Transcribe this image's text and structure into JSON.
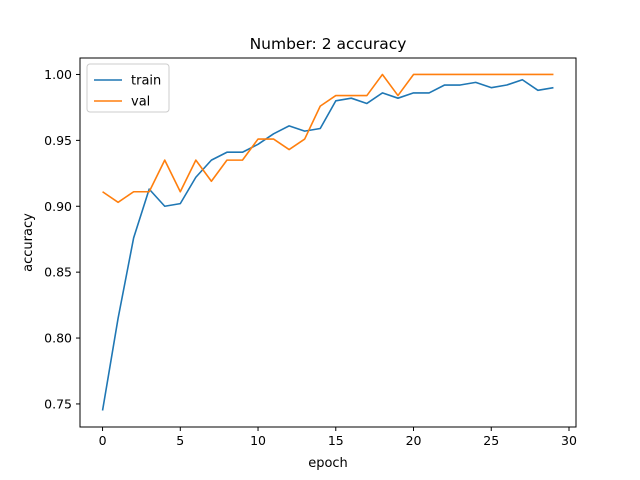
{
  "chart_data": {
    "type": "line",
    "title": "Number: 2 accuracy",
    "xlabel": "epoch",
    "ylabel": "accuracy",
    "xlim": [
      -1.45,
      30.45
    ],
    "ylim": [
      0.7325,
      1.0125
    ],
    "xticks": [
      0,
      5,
      10,
      15,
      20,
      25,
      30
    ],
    "yticks": [
      0.75,
      0.8,
      0.85,
      0.9,
      0.95,
      1.0
    ],
    "ytick_labels": [
      "0.75",
      "0.80",
      "0.85",
      "0.90",
      "0.95",
      "1.00"
    ],
    "legend_position": "upper-left",
    "x": [
      0,
      1,
      2,
      3,
      4,
      5,
      6,
      7,
      8,
      9,
      10,
      11,
      12,
      13,
      14,
      15,
      16,
      17,
      18,
      19,
      20,
      21,
      22,
      23,
      24,
      25,
      26,
      27,
      28,
      29
    ],
    "series": [
      {
        "name": "train",
        "color": "#1f77b4",
        "values": [
          0.745,
          0.815,
          0.876,
          0.913,
          0.9,
          0.902,
          0.922,
          0.935,
          0.941,
          0.941,
          0.947,
          0.955,
          0.961,
          0.957,
          0.959,
          0.98,
          0.982,
          0.978,
          0.986,
          0.982,
          0.986,
          0.986,
          0.992,
          0.992,
          0.994,
          0.99,
          0.992,
          0.996,
          0.988,
          0.99
        ]
      },
      {
        "name": "val",
        "color": "#ff7f0e",
        "values": [
          0.911,
          0.903,
          0.911,
          0.911,
          0.935,
          0.911,
          0.935,
          0.919,
          0.935,
          0.935,
          0.951,
          0.951,
          0.943,
          0.951,
          0.976,
          0.984,
          0.984,
          0.984,
          1.0,
          0.984,
          1.0,
          1.0,
          1.0,
          1.0,
          1.0,
          1.0,
          1.0,
          1.0,
          1.0,
          1.0
        ]
      }
    ]
  }
}
